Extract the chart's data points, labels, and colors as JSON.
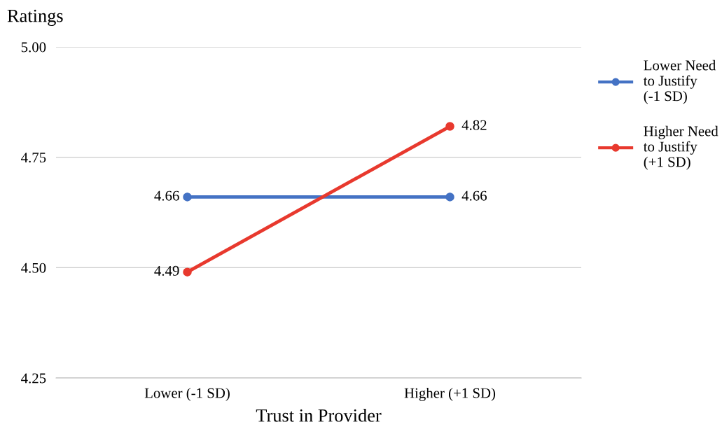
{
  "chart_data": {
    "type": "line",
    "ylabel": "Ratings",
    "xlabel": "Trust in Provider",
    "categories": [
      "Lower (-1 SD)",
      "Higher (+1 SD)"
    ],
    "series": [
      {
        "name": "Lower Need\nto Justify\n(-1 SD)",
        "color": "#4472c4",
        "values": [
          4.66,
          4.66
        ]
      },
      {
        "name": "Higher Need\nto Justify\n(+1 SD)",
        "color": "#e8392e",
        "values": [
          4.49,
          4.82
        ]
      }
    ],
    "ylim": [
      4.25,
      5.0
    ],
    "yticks": [
      4.25,
      {
        "value": 4.5,
        "label": "4.50"
      },
      4.75,
      {
        "value": 5.0,
        "label": "5.00"
      }
    ],
    "grid": "y",
    "legend": "right",
    "marker": "circle",
    "line_style": "solid",
    "data_labels": true
  }
}
